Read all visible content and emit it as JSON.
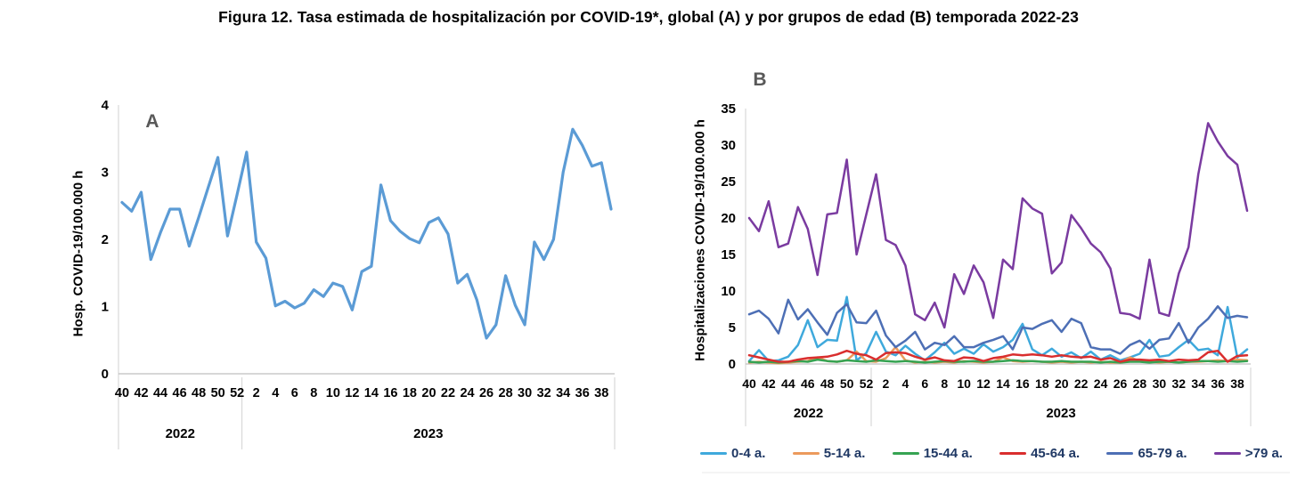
{
  "title": "Figura 12. Tasa estimada de hospitalización por COVID-19*, global (A) y por grupos de edad (B) temporada 2022-23",
  "chart_data": [
    {
      "type": "line",
      "panel_label": "A",
      "ylabel": "Hosp. COVID-19/100.000 h",
      "xlabel": "",
      "ylim": [
        0,
        4
      ],
      "ytick_step": 1,
      "xtick_every": 2,
      "grid": false,
      "x_unit": "semana epidemiológica",
      "categories": [
        40,
        41,
        42,
        43,
        44,
        45,
        46,
        47,
        48,
        49,
        50,
        51,
        52,
        1,
        2,
        3,
        4,
        5,
        6,
        7,
        8,
        9,
        10,
        11,
        12,
        13,
        14,
        15,
        16,
        17,
        18,
        19,
        20,
        21,
        22,
        23,
        24,
        25,
        26,
        27,
        28,
        29,
        30,
        31,
        32,
        33,
        34,
        35,
        36,
        37,
        38,
        39
      ],
      "year_groups": [
        {
          "label": "2022",
          "count": 13
        },
        {
          "label": "2023",
          "count": 39
        }
      ],
      "series": [
        {
          "name": "Global",
          "color": "#5B9BD5",
          "values": [
            2.55,
            2.42,
            2.7,
            1.7,
            2.1,
            2.45,
            2.45,
            1.9,
            2.33,
            2.78,
            3.22,
            2.05,
            2.67,
            3.3,
            1.96,
            1.72,
            1.01,
            1.08,
            0.98,
            1.05,
            1.25,
            1.15,
            1.35,
            1.3,
            0.95,
            1.52,
            1.6,
            2.81,
            2.28,
            2.12,
            2.01,
            1.95,
            2.25,
            2.32,
            2.08,
            1.35,
            1.48,
            1.1,
            0.53,
            0.73,
            1.46,
            1.02,
            0.73,
            1.96,
            1.7,
            2.0,
            3.0,
            3.64,
            3.4,
            3.09,
            3.14,
            2.45
          ]
        }
      ]
    },
    {
      "type": "line",
      "panel_label": "B",
      "ylabel": "Hospitalizaciones  COVID-19/100.000 h",
      "xlabel": "",
      "ylim": [
        0,
        35
      ],
      "ytick_step": 5,
      "xtick_every": 2,
      "grid": false,
      "x_unit": "semana epidemiológica",
      "legend_position": "bottom",
      "categories": [
        40,
        41,
        42,
        43,
        44,
        45,
        46,
        47,
        48,
        49,
        50,
        51,
        52,
        1,
        2,
        3,
        4,
        5,
        6,
        7,
        8,
        9,
        10,
        11,
        12,
        13,
        14,
        15,
        16,
        17,
        18,
        19,
        20,
        21,
        22,
        23,
        24,
        25,
        26,
        27,
        28,
        29,
        30,
        31,
        32,
        33,
        34,
        35,
        36,
        37,
        38,
        39
      ],
      "year_groups": [
        {
          "label": "2022",
          "count": 13
        },
        {
          "label": "2023",
          "count": 39
        }
      ],
      "series": [
        {
          "name": "0-4 a.",
          "color": "#3FA9DC",
          "values": [
            0.4,
            1.9,
            0.4,
            0.5,
            1.0,
            2.6,
            6.0,
            2.3,
            3.3,
            3.2,
            9.2,
            0.5,
            1.5,
            4.4,
            1.7,
            1.2,
            2.5,
            1.4,
            0.5,
            1.6,
            2.9,
            1.4,
            2.1,
            1.4,
            2.7,
            1.7,
            2.3,
            3.3,
            5.5,
            2.0,
            1.2,
            2.1,
            1.0,
            1.6,
            0.8,
            1.7,
            0.6,
            1.2,
            0.5,
            0.9,
            1.4,
            3.3,
            1.0,
            1.2,
            2.3,
            3.3,
            1.9,
            2.1,
            1.2,
            7.8,
            0.9,
            2.0
          ]
        },
        {
          "name": "5-14 a.",
          "color": "#EC9A5C",
          "values": [
            0.2,
            0.3,
            0.2,
            0.1,
            0.2,
            0.3,
            0.4,
            0.9,
            0.4,
            0.3,
            0.5,
            1.7,
            0.4,
            0.3,
            0.8,
            2.3,
            0.5,
            0.2,
            0.3,
            0.2,
            0.3,
            0.2,
            0.4,
            0.3,
            0.2,
            0.3,
            0.9,
            0.4,
            0.3,
            0.4,
            0.3,
            0.2,
            0.3,
            0.2,
            0.3,
            0.2,
            0.3,
            0.2,
            0.2,
            0.9,
            0.4,
            0.3,
            0.2,
            0.3,
            0.2,
            0.3,
            0.3,
            0.4,
            0.5,
            0.4,
            0.6,
            0.5
          ]
        },
        {
          "name": "15-44 a.",
          "color": "#36A352",
          "values": [
            0.3,
            0.2,
            0.3,
            0.2,
            0.3,
            0.4,
            0.3,
            0.6,
            0.4,
            0.3,
            0.5,
            0.4,
            0.3,
            0.5,
            0.4,
            0.3,
            0.4,
            0.3,
            0.2,
            0.3,
            0.4,
            0.3,
            0.3,
            0.4,
            0.3,
            0.3,
            0.4,
            0.5,
            0.4,
            0.4,
            0.3,
            0.3,
            0.4,
            0.3,
            0.3,
            0.3,
            0.2,
            0.3,
            0.2,
            0.3,
            0.3,
            0.2,
            0.3,
            0.3,
            0.2,
            0.3,
            0.4,
            0.4,
            0.3,
            0.4,
            0.3,
            0.4
          ]
        },
        {
          "name": "45-64 a.",
          "color": "#D92E2E",
          "values": [
            1.2,
            0.9,
            0.6,
            0.3,
            0.3,
            0.6,
            0.8,
            0.9,
            1.0,
            1.3,
            1.8,
            1.4,
            1.2,
            0.6,
            1.5,
            1.6,
            1.5,
            1.0,
            0.6,
            0.9,
            0.5,
            0.4,
            0.9,
            0.8,
            0.4,
            0.8,
            1.0,
            1.3,
            1.2,
            1.3,
            1.2,
            1.0,
            1.2,
            1.0,
            0.9,
            1.0,
            0.6,
            0.8,
            0.3,
            0.6,
            0.6,
            0.5,
            0.6,
            0.4,
            0.6,
            0.5,
            0.6,
            1.6,
            1.8,
            0.3,
            1.1,
            1.2
          ]
        },
        {
          "name": "65-79 a.",
          "color": "#4D6FB5",
          "values": [
            6.8,
            7.3,
            6.2,
            4.2,
            8.8,
            6.1,
            7.5,
            5.7,
            4.0,
            7.0,
            8.2,
            5.7,
            5.6,
            7.3,
            3.9,
            2.3,
            3.2,
            4.4,
            2.0,
            2.9,
            2.6,
            3.8,
            2.3,
            2.3,
            2.9,
            3.3,
            3.8,
            2.0,
            5.0,
            4.8,
            5.5,
            6.0,
            4.4,
            6.2,
            5.6,
            2.3,
            2.0,
            2.0,
            1.4,
            2.6,
            3.2,
            2.1,
            3.3,
            3.5,
            5.6,
            2.9,
            5.0,
            6.2,
            7.9,
            6.3,
            6.6,
            6.4
          ]
        },
        {
          "name": ">79 a.",
          "color": "#7A3BA0",
          "values": [
            20.0,
            18.2,
            22.3,
            16.0,
            16.5,
            21.5,
            18.5,
            12.2,
            20.5,
            20.7,
            28.0,
            15.0,
            20.5,
            26.0,
            17.0,
            16.3,
            13.5,
            6.8,
            6.0,
            8.4,
            5.0,
            12.3,
            9.6,
            13.5,
            11.2,
            6.3,
            14.3,
            13.0,
            22.7,
            21.3,
            20.6,
            12.4,
            13.9,
            20.4,
            18.6,
            16.5,
            15.3,
            13.1,
            7.0,
            6.8,
            6.2,
            14.3,
            7.0,
            6.6,
            12.4,
            16.0,
            26.0,
            33.0,
            30.5,
            28.5,
            27.3,
            21.0
          ]
        }
      ]
    }
  ]
}
